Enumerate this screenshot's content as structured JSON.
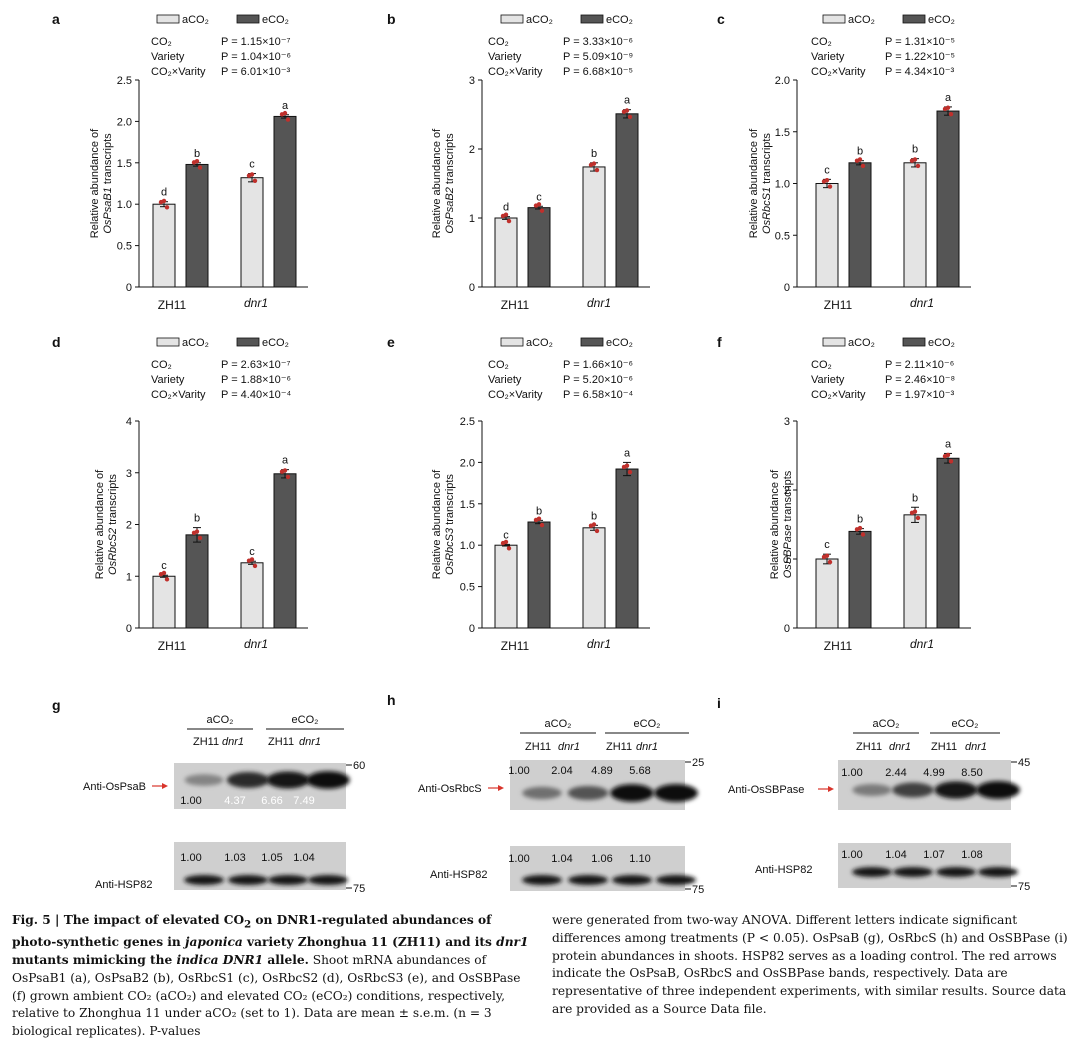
{
  "figure": {
    "legend": {
      "ambient": "aCO₂",
      "elevated": "eCO₂"
    },
    "colors": {
      "ambient_fill": "#e4e4e4",
      "elevated_fill": "#555555",
      "points": "#c0302c",
      "arrow": "#d9342b",
      "blot_bg": "#cfcfcf"
    },
    "stat_labels": [
      "CO₂",
      "Variety",
      "CO₂×Varity"
    ],
    "x_groups": [
      "ZH11",
      "dnr1"
    ]
  },
  "chart_data": [
    {
      "panel": "a",
      "type": "bar",
      "gene": "OsPsaB1",
      "ylabel_prefix": "Relative abundance of",
      "ylabel_suffix": " transcripts",
      "categories": [
        "ZH11",
        "dnr1"
      ],
      "series": [
        {
          "name": "aCO₂",
          "values": [
            1.0,
            1.32
          ],
          "errors": [
            0.03,
            0.05
          ],
          "letters": [
            "d",
            "c"
          ]
        },
        {
          "name": "eCO₂",
          "values": [
            1.48,
            2.06
          ],
          "errors": [
            0.02,
            0.02
          ],
          "letters": [
            "b",
            "a"
          ]
        }
      ],
      "ylim": [
        0,
        2.5
      ],
      "yticks": [
        0,
        0.5,
        1.0,
        1.5,
        2.0,
        2.5
      ],
      "ytick_labels": [
        "0",
        "0.5",
        "1.0",
        "1.5",
        "2.0",
        "2.5"
      ],
      "stats": [
        "P = 1.15×10⁻⁷",
        "P = 1.04×10⁻⁶",
        "P = 6.01×10⁻³"
      ]
    },
    {
      "panel": "b",
      "type": "bar",
      "gene": "OsPsaB2",
      "ylabel_prefix": "Relative abundance of",
      "ylabel_suffix": " transcripts",
      "categories": [
        "ZH11",
        "dnr1"
      ],
      "series": [
        {
          "name": "aCO₂",
          "values": [
            1.0,
            1.74
          ],
          "errors": [
            0.02,
            0.06
          ],
          "letters": [
            "d",
            "b"
          ]
        },
        {
          "name": "eCO₂",
          "values": [
            1.15,
            2.51
          ],
          "errors": [
            0.02,
            0.06
          ],
          "letters": [
            "c",
            "a"
          ]
        }
      ],
      "ylim": [
        0,
        3
      ],
      "yticks": [
        0,
        1,
        2,
        3
      ],
      "ytick_labels": [
        "0",
        "1",
        "2",
        "3"
      ],
      "stats": [
        "P = 3.33×10⁻⁶",
        "P = 5.09×10⁻⁹",
        "P = 6.68×10⁻⁵"
      ]
    },
    {
      "panel": "c",
      "type": "bar",
      "gene": "OsRbcS1",
      "ylabel_prefix": "Relative abundance of",
      "ylabel_suffix": " transcripts",
      "categories": [
        "ZH11",
        "dnr1"
      ],
      "series": [
        {
          "name": "aCO₂",
          "values": [
            1.0,
            1.2
          ],
          "errors": [
            0.04,
            0.04
          ],
          "letters": [
            "c",
            "b"
          ]
        },
        {
          "name": "eCO₂",
          "values": [
            1.2,
            1.7
          ],
          "errors": [
            0.02,
            0.04
          ],
          "letters": [
            "b",
            "a"
          ]
        }
      ],
      "ylim": [
        0,
        2.0
      ],
      "yticks": [
        0,
        0.5,
        1.0,
        1.5,
        2.0
      ],
      "ytick_labels": [
        "0",
        "0.5",
        "1.0",
        "1.5",
        "2.0"
      ],
      "stats": [
        "P = 1.31×10⁻⁵",
        "P = 1.22×10⁻⁵",
        "P = 4.34×10⁻³"
      ]
    },
    {
      "panel": "d",
      "type": "bar",
      "gene": "OsRbcS2",
      "ylabel_prefix": "Relative abundance of",
      "ylabel_suffix": " transcripts",
      "categories": [
        "ZH11",
        "dnr1"
      ],
      "series": [
        {
          "name": "aCO₂",
          "values": [
            1.0,
            1.26
          ],
          "errors": [
            0.02,
            0.03
          ],
          "letters": [
            "c",
            "c"
          ]
        },
        {
          "name": "eCO₂",
          "values": [
            1.8,
            2.98
          ],
          "errors": [
            0.14,
            0.08
          ],
          "letters": [
            "b",
            "a"
          ]
        }
      ],
      "ylim": [
        0,
        4
      ],
      "yticks": [
        0,
        1,
        2,
        3,
        4
      ],
      "ytick_labels": [
        "0",
        "1",
        "2",
        "3",
        "4"
      ],
      "stats": [
        "P = 2.63×10⁻⁷",
        "P = 1.88×10⁻⁶",
        "P = 4.40×10⁻⁴"
      ]
    },
    {
      "panel": "e",
      "type": "bar",
      "gene": "OsRbcS3",
      "ylabel_prefix": "Relative abundance of",
      "ylabel_suffix": " transcripts",
      "categories": [
        "ZH11",
        "dnr1"
      ],
      "series": [
        {
          "name": "aCO₂",
          "values": [
            1.0,
            1.21
          ],
          "errors": [
            0.01,
            0.03
          ],
          "letters": [
            "c",
            "b"
          ]
        },
        {
          "name": "eCO₂",
          "values": [
            1.28,
            1.92
          ],
          "errors": [
            0.02,
            0.08
          ],
          "letters": [
            "b",
            "a"
          ]
        }
      ],
      "ylim": [
        0,
        2.5
      ],
      "yticks": [
        0,
        0.5,
        1.0,
        1.5,
        2.0,
        2.5
      ],
      "ytick_labels": [
        "0",
        "0.5",
        "1.0",
        "1.5",
        "2.0",
        "2.5"
      ],
      "stats": [
        "P = 1.66×10⁻⁶",
        "P = 5.20×10⁻⁶",
        "P = 6.58×10⁻⁴"
      ]
    },
    {
      "panel": "f",
      "type": "bar",
      "gene": "OsSBPase",
      "ylabel_prefix": "Relative abundance of",
      "ylabel_suffix": " transcripts",
      "categories": [
        "ZH11",
        "dnr1"
      ],
      "series": [
        {
          "name": "aCO₂",
          "values": [
            1.0,
            1.64
          ],
          "errors": [
            0.07,
            0.11
          ],
          "letters": [
            "c",
            "b"
          ]
        },
        {
          "name": "eCO₂",
          "values": [
            1.4,
            2.46
          ],
          "errors": [
            0.04,
            0.07
          ],
          "letters": [
            "b",
            "a"
          ]
        }
      ],
      "ylim": [
        0,
        3
      ],
      "yticks": [
        0,
        1,
        2,
        3
      ],
      "ytick_labels": [
        "0",
        "1",
        "2",
        "3"
      ],
      "stats": [
        "P = 2.11×10⁻⁶",
        "P = 2.46×10⁻⁸",
        "P = 1.97×10⁻³"
      ]
    }
  ],
  "blots": [
    {
      "panel": "g",
      "target": "Anti-OsPsaB",
      "loading": "Anti-HSP82",
      "target_values": [
        "1.00",
        "4.37",
        "6.66",
        "7.49"
      ],
      "loading_values": [
        "1.00",
        "1.03",
        "1.05",
        "1.04"
      ],
      "target_marker": "60",
      "loading_marker": "75",
      "target_intensity": [
        0.35,
        0.8,
        0.9,
        0.95
      ],
      "loading_intensity": [
        0.92,
        0.92,
        0.92,
        0.92
      ]
    },
    {
      "panel": "h",
      "target": "Anti-OsRbcS",
      "loading": "Anti-HSP82",
      "target_values": [
        "1.00",
        "2.04",
        "4.89",
        "5.68"
      ],
      "loading_values": [
        "1.00",
        "1.04",
        "1.06",
        "1.10"
      ],
      "target_marker": "25",
      "loading_marker": "75",
      "target_intensity": [
        0.45,
        0.6,
        0.95,
        0.98
      ],
      "loading_intensity": [
        0.92,
        0.92,
        0.92,
        0.92
      ]
    },
    {
      "panel": "i",
      "target": "Anti-OsSBPase",
      "loading": "Anti-HSP82",
      "target_values": [
        "1.00",
        "2.44",
        "4.99",
        "8.50"
      ],
      "loading_values": [
        "1.00",
        "1.04",
        "1.07",
        "1.08"
      ],
      "target_marker": "45",
      "loading_marker": "75",
      "target_intensity": [
        0.4,
        0.7,
        0.92,
        0.98
      ],
      "loading_intensity": [
        0.92,
        0.92,
        0.92,
        0.92
      ]
    }
  ],
  "blot_headers": {
    "ambient": "aCO₂",
    "elevated": "eCO₂",
    "lane1": "ZH11",
    "lane2": "dnr1"
  },
  "caption": {
    "fig_label": "Fig. 5 | ",
    "title_1": "The impact of elevated CO",
    "title_2": " on DNR1-regulated abundances of photo-synthetic genes in ",
    "title_3": "japonica",
    "title_4": " variety Zhonghua 11 (ZH11) and its ",
    "title_5": "dnr1",
    "title_6": " mutants mimicking the ",
    "title_7": "indica DNR1",
    "title_8": " allele.",
    "body_left": " Shoot mRNA abundances of OsPsaB1 (a), OsPsaB2 (b), OsRbcS1 (c), OsRbcS2 (d), OsRbcS3 (e), and OsSBPase (f) grown ambient CO₂ (aCO₂) and elevated CO₂ (eCO₂) conditions, respectively, relative to Zhonghua 11 under aCO₂ (set to 1). Data are mean ± s.e.m. (n = 3 biological replicates). P-values",
    "body_right": "were generated from two-way ANOVA. Different letters indicate significant differences among treatments (P < 0.05). OsPsaB (g), OsRbcS (h) and OsSBPase (i) protein abundances in shoots. HSP82 serves as a loading control. The red arrows indicate the OsPsaB, OsRbcS and OsSBPase bands, respectively. Data are representative of three independent experiments, with similar results. Source data are provided as a Source Data file."
  }
}
